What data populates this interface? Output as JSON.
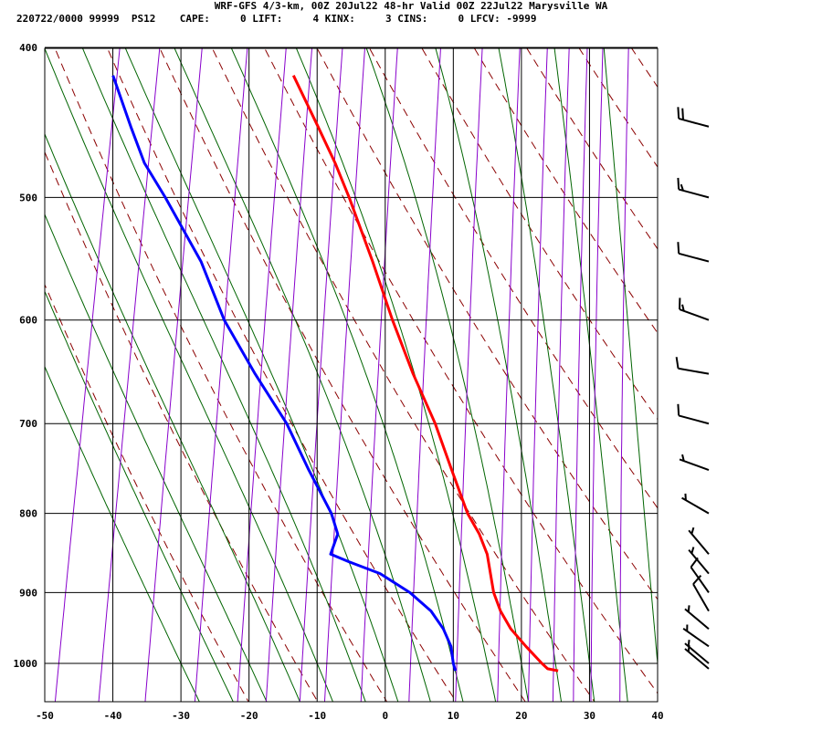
{
  "chart_data": {
    "type": "line",
    "title": "WRF-GFS 4/3-km, 00Z 20Jul22 48-hr Valid 00Z 22Jul22 Marysville WA",
    "subtitle": "220722/0000 99999  PS12    CAPE:     0 LIFT:     4 KINX:     3 CINS:     0 LFCV: -9999",
    "x_ticks": [
      "-50",
      "-40",
      "-30",
      "-20",
      "-10",
      "0",
      "10",
      "20",
      "30",
      "40"
    ],
    "x_tick_values": [
      -50,
      -40,
      -30,
      -20,
      -10,
      0,
      10,
      20,
      30,
      40
    ],
    "y_ticks": [
      "400",
      "500",
      "600",
      "700",
      "800",
      "900",
      "1000"
    ],
    "y_tick_values": [
      400,
      500,
      600,
      700,
      800,
      900,
      1000
    ],
    "xlim": [
      -50,
      40
    ],
    "ylim_hpa": [
      1040,
      400
    ],
    "skew_deg_per_ln": 18.32,
    "grid": true,
    "legend": "none",
    "colors": {
      "temperature": "#ff0000",
      "dewpoint": "#0000ff",
      "dry_adiabat": "#8b0000",
      "moist_adiabat": "#006400",
      "mixing_ratio": "#8800cc",
      "grid": "#000000"
    },
    "series": [
      {
        "points": [
          [
            1011,
            25.6
          ],
          [
            1008,
            24.0
          ],
          [
            1000,
            23.0
          ],
          [
            975,
            20.2
          ],
          [
            950,
            17.5
          ],
          [
            925,
            15.5
          ],
          [
            900,
            14.0
          ],
          [
            850,
            12.0
          ],
          [
            825,
            10.3
          ],
          [
            800,
            8.0
          ],
          [
            750,
            4.5
          ],
          [
            700,
            0.8
          ],
          [
            650,
            -3.8
          ],
          [
            600,
            -8.3
          ],
          [
            550,
            -12.8
          ],
          [
            500,
            -18.0
          ],
          [
            475,
            -21.0
          ],
          [
            450,
            -24.5
          ],
          [
            417,
            -29.5
          ]
        ]
      },
      {
        "points": [
          [
            1011,
            10.5
          ],
          [
            1000,
            10.0
          ],
          [
            975,
            9.2
          ],
          [
            950,
            7.6
          ],
          [
            925,
            5.3
          ],
          [
            900,
            1.7
          ],
          [
            875,
            -3.2
          ],
          [
            860,
            -8.0
          ],
          [
            850,
            -11.0
          ],
          [
            825,
            -10.5
          ],
          [
            800,
            -12.0
          ],
          [
            750,
            -16.5
          ],
          [
            700,
            -21.0
          ],
          [
            650,
            -27.0
          ],
          [
            600,
            -33.0
          ],
          [
            550,
            -38.0
          ],
          [
            500,
            -45.0
          ],
          [
            475,
            -49.0
          ],
          [
            450,
            -52.0
          ],
          [
            417,
            -56.0
          ]
        ]
      }
    ],
    "wind_barbs": [
      {
        "p": 1008,
        "dir": 310,
        "kt": 5
      },
      {
        "p": 1000,
        "dir": 310,
        "kt": 5
      },
      {
        "p": 975,
        "dir": 305,
        "kt": 5
      },
      {
        "p": 950,
        "dir": 310,
        "kt": 5
      },
      {
        "p": 925,
        "dir": 330,
        "kt": 10
      },
      {
        "p": 900,
        "dir": 325,
        "kt": 10
      },
      {
        "p": 875,
        "dir": 320,
        "kt": 5
      },
      {
        "p": 850,
        "dir": 320,
        "kt": 5
      },
      {
        "p": 800,
        "dir": 300,
        "kt": 5
      },
      {
        "p": 750,
        "dir": 290,
        "kt": 5
      },
      {
        "p": 700,
        "dir": 285,
        "kt": 10
      },
      {
        "p": 650,
        "dir": 280,
        "kt": 10
      },
      {
        "p": 600,
        "dir": 290,
        "kt": 15
      },
      {
        "p": 550,
        "dir": 285,
        "kt": 10
      },
      {
        "p": 500,
        "dir": 285,
        "kt": 15
      },
      {
        "p": 450,
        "dir": 285,
        "kt": 20
      }
    ]
  }
}
